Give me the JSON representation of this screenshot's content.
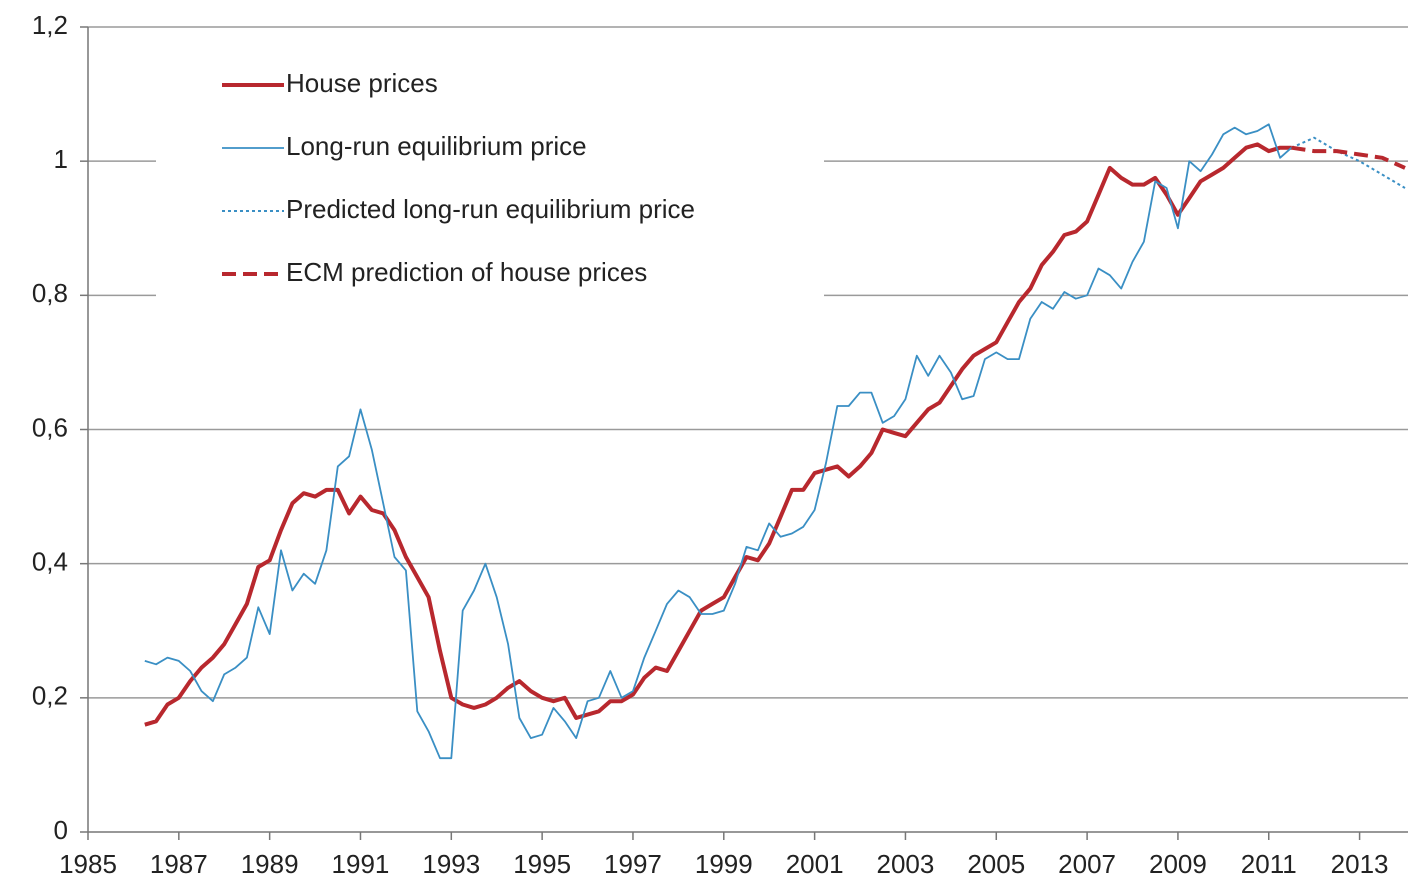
{
  "chart_data": {
    "type": "line",
    "xlim": [
      1985,
      2014
    ],
    "xticks": [
      1985,
      1987,
      1989,
      1991,
      1993,
      1995,
      1997,
      1999,
      2001,
      2003,
      2005,
      2007,
      2009,
      2011,
      2013
    ],
    "ylim": [
      0,
      1.2
    ],
    "yticks": [
      0,
      {
        "value": 0.2,
        "label": "0,2"
      },
      {
        "value": 0.4,
        "label": "0,4"
      },
      {
        "value": 0.6,
        "label": "0,6"
      },
      {
        "value": 0.8,
        "label": "0,8"
      },
      1,
      {
        "value": 1.2,
        "label": "1,2"
      }
    ],
    "grid": true,
    "legend": "upper left",
    "series": [
      {
        "name": "House prices",
        "color": "#b8282e",
        "style": "solid",
        "width": 4,
        "x": [
          1986.25,
          1986.5,
          1986.75,
          1987,
          1987.25,
          1987.5,
          1987.75,
          1988,
          1988.25,
          1988.5,
          1988.75,
          1989,
          1989.25,
          1989.5,
          1989.75,
          1990,
          1990.25,
          1990.5,
          1990.75,
          1991,
          1991.25,
          1991.5,
          1991.75,
          1992,
          1992.25,
          1992.5,
          1992.75,
          1993,
          1993.25,
          1993.5,
          1993.75,
          1994,
          1994.25,
          1994.5,
          1994.75,
          1995,
          1995.25,
          1995.5,
          1995.75,
          1996,
          1996.25,
          1996.5,
          1996.75,
          1997,
          1997.25,
          1997.5,
          1997.75,
          1998,
          1998.25,
          1998.5,
          1998.75,
          1999,
          1999.25,
          1999.5,
          1999.75,
          2000,
          2000.25,
          2000.5,
          2000.75,
          2001,
          2001.25,
          2001.5,
          2001.75,
          2002,
          2002.25,
          2002.5,
          2002.75,
          2003,
          2003.25,
          2003.5,
          2003.75,
          2004,
          2004.25,
          2004.5,
          2004.75,
          2005,
          2005.25,
          2005.5,
          2005.75,
          2006,
          2006.25,
          2006.5,
          2006.75,
          2007,
          2007.25,
          2007.5,
          2007.75,
          2008,
          2008.25,
          2008.5,
          2008.75,
          2009,
          2009.25,
          2009.5,
          2009.75,
          2010,
          2010.25,
          2010.5,
          2010.75,
          2011,
          2011.25,
          2011.5
        ],
        "values": [
          0.16,
          0.165,
          0.19,
          0.2,
          0.225,
          0.245,
          0.26,
          0.28,
          0.31,
          0.34,
          0.395,
          0.405,
          0.45,
          0.49,
          0.505,
          0.5,
          0.51,
          0.51,
          0.475,
          0.5,
          0.48,
          0.475,
          0.45,
          0.41,
          0.38,
          0.35,
          0.27,
          0.2,
          0.19,
          0.185,
          0.19,
          0.2,
          0.215,
          0.225,
          0.21,
          0.2,
          0.195,
          0.2,
          0.17,
          0.175,
          0.18,
          0.195,
          0.195,
          0.205,
          0.23,
          0.245,
          0.24,
          0.27,
          0.3,
          0.33,
          0.34,
          0.35,
          0.38,
          0.41,
          0.405,
          0.43,
          0.47,
          0.51,
          0.51,
          0.535,
          0.54,
          0.545,
          0.53,
          0.545,
          0.565,
          0.6,
          0.595,
          0.59,
          0.61,
          0.63,
          0.64,
          0.665,
          0.69,
          0.71,
          0.72,
          0.73,
          0.76,
          0.79,
          0.81,
          0.845,
          0.865,
          0.89,
          0.895,
          0.91,
          0.95,
          0.99,
          0.975,
          0.965,
          0.965,
          0.975,
          0.95,
          0.92,
          0.945,
          0.97,
          0.98,
          0.99,
          1.005,
          1.02,
          1.025,
          1.015,
          1.02,
          1.02
        ]
      },
      {
        "name": "Long-run equilibrium price",
        "color": "#3a8fc4",
        "style": "solid",
        "width": 1.8,
        "x": [
          1986.25,
          1986.5,
          1986.75,
          1987,
          1987.25,
          1987.5,
          1987.75,
          1988,
          1988.25,
          1988.5,
          1988.75,
          1989,
          1989.25,
          1989.5,
          1989.75,
          1990,
          1990.25,
          1990.5,
          1990.75,
          1991,
          1991.25,
          1991.5,
          1991.75,
          1992,
          1992.25,
          1992.5,
          1992.75,
          1993,
          1993.25,
          1993.5,
          1993.75,
          1994,
          1994.25,
          1994.5,
          1994.75,
          1995,
          1995.25,
          1995.5,
          1995.75,
          1996,
          1996.25,
          1996.5,
          1996.75,
          1997,
          1997.25,
          1997.5,
          1997.75,
          1998,
          1998.25,
          1998.5,
          1998.75,
          1999,
          1999.25,
          1999.5,
          1999.75,
          2000,
          2000.25,
          2000.5,
          2000.75,
          2001,
          2001.25,
          2001.5,
          2001.75,
          2002,
          2002.25,
          2002.5,
          2002.75,
          2003,
          2003.25,
          2003.5,
          2003.75,
          2004,
          2004.25,
          2004.5,
          2004.75,
          2005,
          2005.25,
          2005.5,
          2005.75,
          2006,
          2006.25,
          2006.5,
          2006.75,
          2007,
          2007.25,
          2007.5,
          2007.75,
          2008,
          2008.25,
          2008.5,
          2008.75,
          2009,
          2009.25,
          2009.5,
          2009.75,
          2010,
          2010.25,
          2010.5,
          2010.75,
          2011,
          2011.25,
          2011.5
        ],
        "values": [
          0.255,
          0.25,
          0.26,
          0.255,
          0.24,
          0.21,
          0.195,
          0.235,
          0.245,
          0.26,
          0.335,
          0.295,
          0.42,
          0.36,
          0.385,
          0.37,
          0.42,
          0.545,
          0.56,
          0.63,
          0.57,
          0.49,
          0.41,
          0.39,
          0.18,
          0.15,
          0.11,
          0.11,
          0.33,
          0.36,
          0.4,
          0.35,
          0.28,
          0.17,
          0.14,
          0.145,
          0.185,
          0.165,
          0.14,
          0.195,
          0.2,
          0.24,
          0.2,
          0.21,
          0.26,
          0.3,
          0.34,
          0.36,
          0.35,
          0.325,
          0.325,
          0.33,
          0.37,
          0.425,
          0.42,
          0.46,
          0.44,
          0.445,
          0.455,
          0.48,
          0.55,
          0.635,
          0.635,
          0.655,
          0.655,
          0.61,
          0.62,
          0.645,
          0.71,
          0.68,
          0.71,
          0.685,
          0.645,
          0.65,
          0.705,
          0.715,
          0.705,
          0.705,
          0.765,
          0.79,
          0.78,
          0.805,
          0.795,
          0.8,
          0.84,
          0.83,
          0.81,
          0.85,
          0.88,
          0.97,
          0.96,
          0.9,
          1.0,
          0.985,
          1.01,
          1.04,
          1.05,
          1.04,
          1.045,
          1.055,
          1.005,
          1.02
        ]
      },
      {
        "name": "Predicted long-run equilibrium price",
        "color": "#3a8fc4",
        "style": "dotted",
        "width": 2,
        "x": [
          2011.5,
          2012,
          2012.5,
          2013,
          2013.5,
          2014
        ],
        "values": [
          1.02,
          1.035,
          1.015,
          1.0,
          0.98,
          0.96
        ]
      },
      {
        "name": "ECM prediction of house prices",
        "color": "#b8282e",
        "style": "dashed",
        "width": 4,
        "x": [
          2011.5,
          2012,
          2012.5,
          2013,
          2013.5,
          2014
        ],
        "values": [
          1.02,
          1.015,
          1.015,
          1.01,
          1.005,
          0.99
        ]
      }
    ]
  }
}
